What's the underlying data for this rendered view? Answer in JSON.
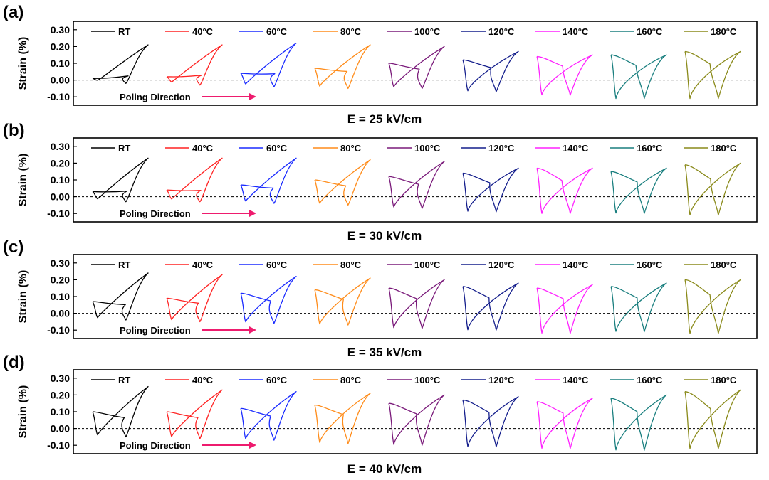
{
  "figure": {
    "ylabel": "Strain (%)",
    "yticks": [
      "0.30",
      "0.20",
      "0.10",
      "0.00",
      "-0.10"
    ],
    "ylim": [
      -0.15,
      0.35
    ],
    "poling_label": "Poling Direction",
    "arrow_color": "#ee1b6e",
    "baseline_style": "dashed"
  },
  "legend": [
    {
      "label": "RT",
      "color": "#000000"
    },
    {
      "label": "40°C",
      "color": "#ff2222"
    },
    {
      "label": "60°C",
      "color": "#1a2bff"
    },
    {
      "label": "80°C",
      "color": "#ff8c1a"
    },
    {
      "label": "100°C",
      "color": "#7a1a7a"
    },
    {
      "label": "120°C",
      "color": "#141e8c"
    },
    {
      "label": "140°C",
      "color": "#ff22ff"
    },
    {
      "label": "160°C",
      "color": "#1a7f7f"
    },
    {
      "label": "180°C",
      "color": "#8a8a1a"
    }
  ],
  "panels": [
    {
      "letter": "(a)",
      "caption": "E = 25 kV/cm"
    },
    {
      "letter": "(b)",
      "caption": "E = 30 kV/cm"
    },
    {
      "letter": "(c)",
      "caption": "E = 35 kV/cm"
    },
    {
      "letter": "(d)",
      "caption": "E = 40 kV/cm"
    }
  ],
  "chart_data": [
    {
      "type": "line",
      "title": "E = 25 kV/cm",
      "ylabel": "Strain (%)",
      "ylim": [
        -0.15,
        0.35
      ],
      "series": [
        {
          "name": "RT",
          "s_max": 0.21,
          "s_rem": 0.01,
          "s_neg": -0.02
        },
        {
          "name": "40°C",
          "s_max": 0.21,
          "s_rem": 0.02,
          "s_neg": -0.03
        },
        {
          "name": "60°C",
          "s_max": 0.22,
          "s_rem": 0.04,
          "s_neg": -0.04
        },
        {
          "name": "80°C",
          "s_max": 0.21,
          "s_rem": 0.07,
          "s_neg": -0.05
        },
        {
          "name": "100°C",
          "s_max": 0.2,
          "s_rem": 0.1,
          "s_neg": -0.05
        },
        {
          "name": "120°C",
          "s_max": 0.17,
          "s_rem": 0.12,
          "s_neg": -0.07
        },
        {
          "name": "140°C",
          "s_max": 0.15,
          "s_rem": 0.14,
          "s_neg": -0.09
        },
        {
          "name": "160°C",
          "s_max": 0.15,
          "s_rem": 0.15,
          "s_neg": -0.11
        },
        {
          "name": "180°C",
          "s_max": 0.17,
          "s_rem": 0.17,
          "s_neg": -0.11
        }
      ]
    },
    {
      "type": "line",
      "title": "E = 30 kV/cm",
      "ylabel": "Strain (%)",
      "ylim": [
        -0.15,
        0.35
      ],
      "series": [
        {
          "name": "RT",
          "s_max": 0.23,
          "s_rem": 0.03,
          "s_neg": -0.03
        },
        {
          "name": "40°C",
          "s_max": 0.23,
          "s_rem": 0.04,
          "s_neg": -0.03
        },
        {
          "name": "60°C",
          "s_max": 0.23,
          "s_rem": 0.07,
          "s_neg": -0.04
        },
        {
          "name": "80°C",
          "s_max": 0.22,
          "s_rem": 0.1,
          "s_neg": -0.05
        },
        {
          "name": "100°C",
          "s_max": 0.21,
          "s_rem": 0.12,
          "s_neg": -0.07
        },
        {
          "name": "120°C",
          "s_max": 0.17,
          "s_rem": 0.14,
          "s_neg": -0.09
        },
        {
          "name": "140°C",
          "s_max": 0.17,
          "s_rem": 0.17,
          "s_neg": -0.1
        },
        {
          "name": "160°C",
          "s_max": 0.17,
          "s_rem": 0.15,
          "s_neg": -0.1
        },
        {
          "name": "180°C",
          "s_max": 0.2,
          "s_rem": 0.19,
          "s_neg": -0.11
        }
      ]
    },
    {
      "type": "line",
      "title": "E = 35 kV/cm",
      "ylabel": "Strain (%)",
      "ylim": [
        -0.15,
        0.35
      ],
      "series": [
        {
          "name": "RT",
          "s_max": 0.24,
          "s_rem": 0.07,
          "s_neg": -0.04
        },
        {
          "name": "40°C",
          "s_max": 0.23,
          "s_rem": 0.09,
          "s_neg": -0.05
        },
        {
          "name": "60°C",
          "s_max": 0.22,
          "s_rem": 0.12,
          "s_neg": -0.06
        },
        {
          "name": "80°C",
          "s_max": 0.21,
          "s_rem": 0.14,
          "s_neg": -0.07
        },
        {
          "name": "100°C",
          "s_max": 0.2,
          "s_rem": 0.15,
          "s_neg": -0.09
        },
        {
          "name": "120°C",
          "s_max": 0.18,
          "s_rem": 0.16,
          "s_neg": -0.1
        },
        {
          "name": "140°C",
          "s_max": 0.17,
          "s_rem": 0.15,
          "s_neg": -0.12
        },
        {
          "name": "160°C",
          "s_max": 0.18,
          "s_rem": 0.16,
          "s_neg": -0.11
        },
        {
          "name": "180°C",
          "s_max": 0.2,
          "s_rem": 0.2,
          "s_neg": -0.12
        }
      ]
    },
    {
      "type": "line",
      "title": "E = 40 kV/cm",
      "ylabel": "Strain (%)",
      "ylim": [
        -0.15,
        0.35
      ],
      "series": [
        {
          "name": "RT",
          "s_max": 0.25,
          "s_rem": 0.1,
          "s_neg": -0.05
        },
        {
          "name": "40°C",
          "s_max": 0.23,
          "s_rem": 0.1,
          "s_neg": -0.06
        },
        {
          "name": "60°C",
          "s_max": 0.22,
          "s_rem": 0.12,
          "s_neg": -0.07
        },
        {
          "name": "80°C",
          "s_max": 0.21,
          "s_rem": 0.14,
          "s_neg": -0.09
        },
        {
          "name": "100°C",
          "s_max": 0.2,
          "s_rem": 0.15,
          "s_neg": -0.1
        },
        {
          "name": "120°C",
          "s_max": 0.19,
          "s_rem": 0.17,
          "s_neg": -0.11
        },
        {
          "name": "140°C",
          "s_max": 0.18,
          "s_rem": 0.16,
          "s_neg": -0.12
        },
        {
          "name": "160°C",
          "s_max": 0.2,
          "s_rem": 0.18,
          "s_neg": -0.13
        },
        {
          "name": "180°C",
          "s_max": 0.23,
          "s_rem": 0.22,
          "s_neg": -0.12
        }
      ]
    }
  ]
}
